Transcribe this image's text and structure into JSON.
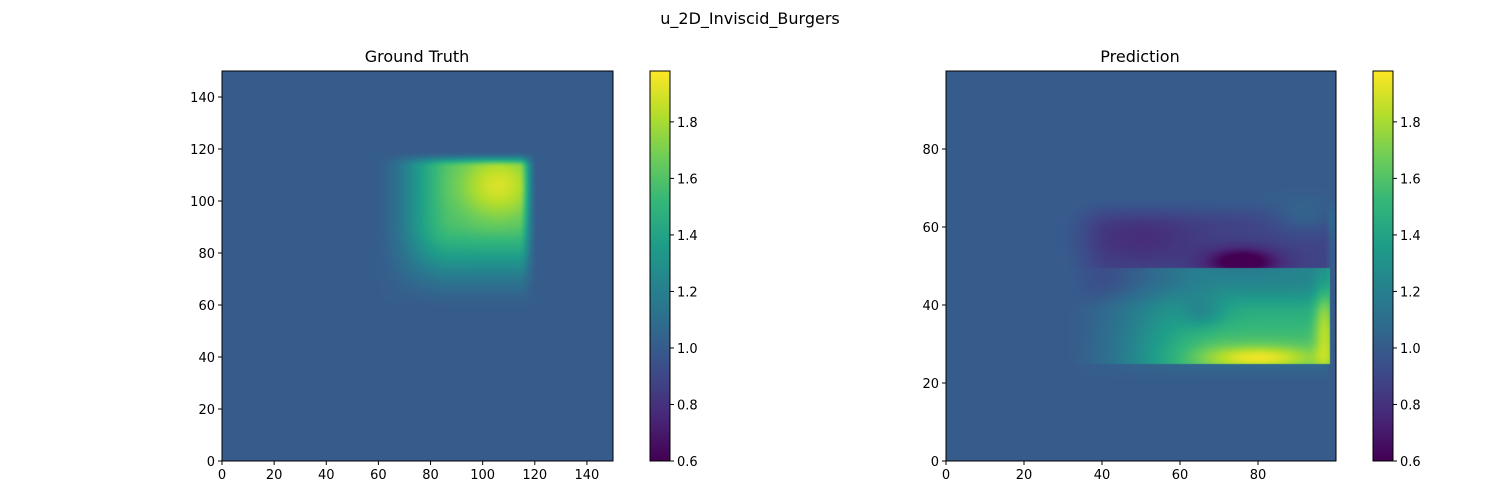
{
  "title": "u_2D_Inviscid_Burgers",
  "chart_data": [
    {
      "type": "heatmap",
      "title": "Ground Truth",
      "xlim": [
        0,
        150
      ],
      "ylim": [
        0,
        150
      ],
      "xticks": [
        0,
        20,
        40,
        60,
        80,
        100,
        120,
        140
      ],
      "yticks": [
        0,
        20,
        40,
        60,
        80,
        100,
        120,
        140
      ],
      "colormap": "viridis",
      "clim": [
        0.6,
        1.98
      ],
      "colorbar_ticks": [
        0.6,
        0.8,
        1.0,
        1.2,
        1.4,
        1.6,
        1.8
      ],
      "background_value": 1.0,
      "features": [
        {
          "kind": "smooth blob",
          "x_range": [
            60,
            120
          ],
          "y_range": [
            60,
            118
          ],
          "peak_value": 1.97,
          "peak_at": [
            105,
            108
          ]
        }
      ]
    },
    {
      "type": "heatmap",
      "title": "Prediction",
      "xlim": [
        0,
        100
      ],
      "ylim": [
        0,
        100
      ],
      "xticks": [
        0,
        20,
        40,
        60,
        80
      ],
      "yticks": [
        0,
        20,
        40,
        60,
        80
      ],
      "colormap": "viridis",
      "clim": [
        0.6,
        1.98
      ],
      "colorbar_ticks": [
        0.6,
        0.8,
        1.0,
        1.2,
        1.4,
        1.6,
        1.8
      ],
      "background_value": 1.0,
      "features": [
        {
          "kind": "low region",
          "x_range": [
            30,
            98
          ],
          "y_range": [
            38,
            67
          ],
          "min_value": 0.6,
          "min_at": [
            76,
            50
          ]
        },
        {
          "kind": "high band",
          "x_range": [
            30,
            98
          ],
          "y_range": [
            25,
            50
          ],
          "peak_value": 1.9,
          "peak_at": [
            78,
            26
          ]
        }
      ]
    }
  ],
  "colors": {
    "viridis_low": "#440154",
    "viridis_mid": "#21918c",
    "viridis_high": "#fde725",
    "background": "#3b5a8e"
  }
}
